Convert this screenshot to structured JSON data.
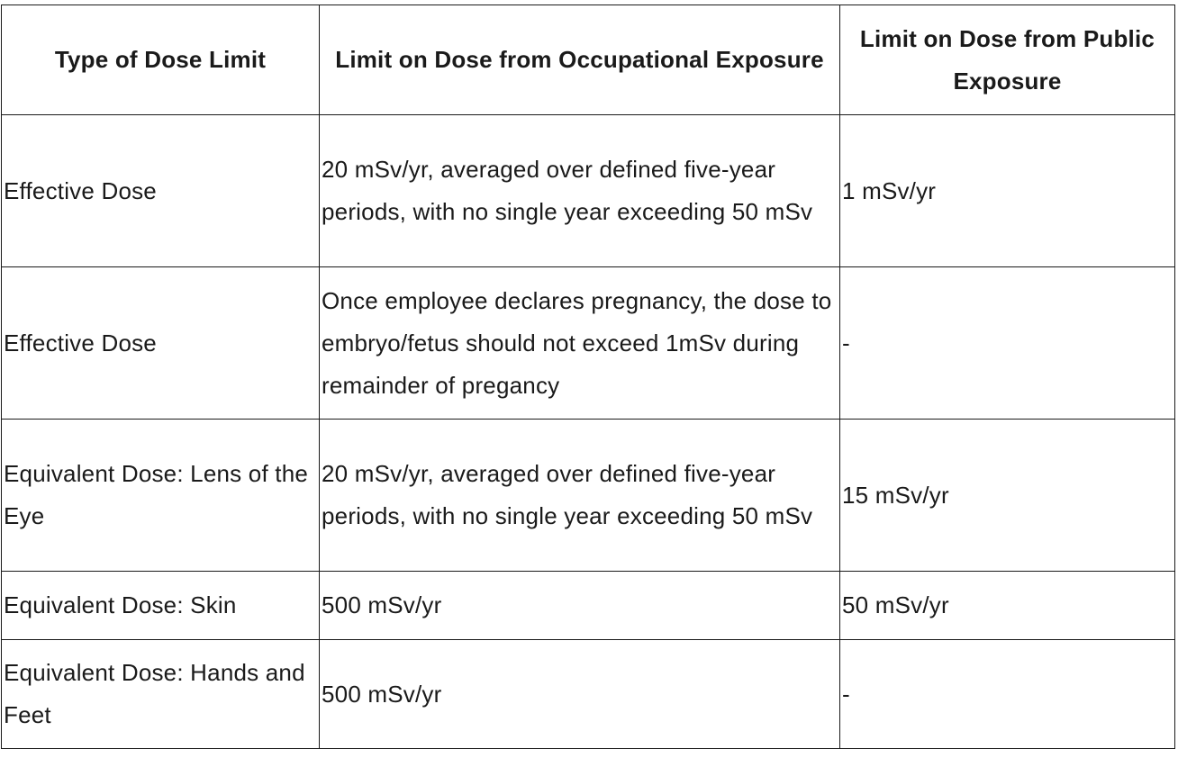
{
  "table": {
    "headers": [
      "Type of Dose Limit",
      "Limit on Dose from Occupational Exposure",
      "Limit on Dose from Public Exposure"
    ],
    "rows": [
      {
        "type": "Effective Dose",
        "occupational": "20 mSv/yr, averaged over defined five-year periods, with no single year exceeding 50 mSv",
        "public": "1 mSv/yr"
      },
      {
        "type": "Effective Dose",
        "occupational": "Once employee declares pregnancy, the dose to embryo/fetus should not exceed 1mSv during remainder of pregancy",
        "public": "-"
      },
      {
        "type": "Equivalent Dose: Lens of the Eye",
        "occupational": "20 mSv/yr, averaged over defined five-year periods, with no single year exceeding 50 mSv",
        "public": "15 mSv/yr"
      },
      {
        "type": "Equivalent Dose: Skin",
        "occupational": "500 mSv/yr",
        "public": "50 mSv/yr"
      },
      {
        "type": "Equivalent Dose: Hands and Feet",
        "occupational": "500 mSv/yr",
        "public": "-"
      }
    ]
  }
}
